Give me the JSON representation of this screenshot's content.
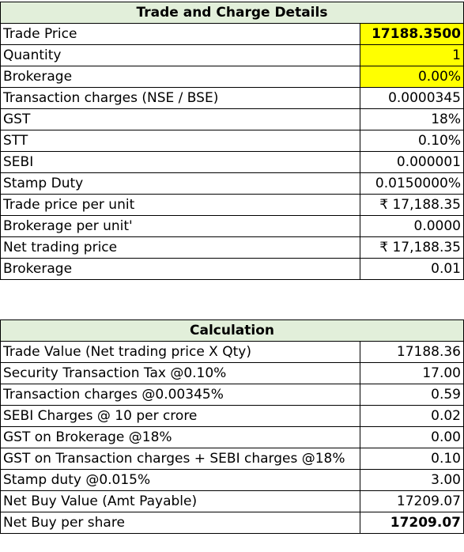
{
  "trade_details": {
    "title": "Trade and Charge Details",
    "rows": [
      {
        "label": "Trade Price",
        "value": "17188.3500"
      },
      {
        "label": "Quantity",
        "value": "1"
      },
      {
        "label": "Brokerage",
        "value": "0.00%"
      },
      {
        "label": "Transaction charges (NSE / BSE)",
        "value": "0.0000345"
      },
      {
        "label": "GST",
        "value": "18%"
      },
      {
        "label": "STT",
        "value": "0.10%"
      },
      {
        "label": "SEBI",
        "value": "0.000001"
      },
      {
        "label": "Stamp Duty",
        "value": "0.0150000%"
      },
      {
        "label": "Trade price per unit",
        "value": "₹ 17,188.35"
      },
      {
        "label": "Brokerage per unit'",
        "value": "0.0000"
      },
      {
        "label": "Net trading price",
        "value": "₹ 17,188.35"
      },
      {
        "label": "Brokerage",
        "value": "0.01"
      }
    ]
  },
  "calculation": {
    "title": "Calculation",
    "rows": [
      {
        "label": "Trade Value (Net trading price X Qty)",
        "value": "17188.36"
      },
      {
        "label": "Security Transaction Tax @0.10%",
        "value": "17.00"
      },
      {
        "label": "Transaction charges @0.00345%",
        "value": "0.59"
      },
      {
        "label": "SEBI Charges @ 10 per crore",
        "value": "0.02"
      },
      {
        "label": "GST on Brokerage @18%",
        "value": "0.00"
      },
      {
        "label": "GST on Transaction charges + SEBI charges @18%",
        "value": "0.10"
      },
      {
        "label": "Stamp duty @0.015%",
        "value": "3.00"
      },
      {
        "label": "Net Buy Value (Amt Payable)",
        "value": "17209.07"
      },
      {
        "label": "Net Buy per share",
        "value": "17209.07"
      }
    ]
  },
  "colors": {
    "header_bg": "#e2efda",
    "input_highlight": "#ffff00"
  }
}
